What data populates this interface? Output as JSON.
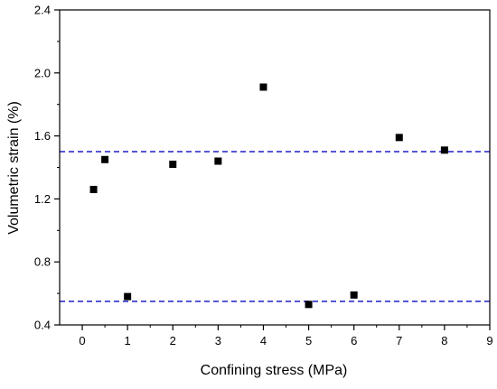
{
  "chart_data": {
    "type": "scatter",
    "title": "",
    "xlabel": "Confining stress (MPa)",
    "ylabel": "Volumetric strain (%)",
    "xlim": [
      -0.5,
      9
    ],
    "ylim": [
      0.4,
      2.4
    ],
    "x_ticks": [
      "0",
      "1",
      "2",
      "3",
      "4",
      "5",
      "6",
      "7",
      "8",
      "9"
    ],
    "y_ticks": [
      "0.4",
      "0.8",
      "1.2",
      "1.6",
      "2.0",
      "2.4"
    ],
    "x_tick_values": [
      0,
      1,
      2,
      3,
      4,
      5,
      6,
      7,
      8,
      9
    ],
    "y_tick_values": [
      0.4,
      0.8,
      1.2,
      1.6,
      2.0,
      2.4
    ],
    "grid": false,
    "marker": "square",
    "series": [
      {
        "x": [
          0.25,
          0.5,
          1,
          2,
          3,
          4,
          5,
          6,
          7,
          8
        ],
        "y": [
          1.26,
          1.45,
          0.58,
          1.42,
          1.44,
          1.91,
          0.53,
          0.59,
          1.59,
          1.51
        ]
      }
    ],
    "reference_lines": [
      {
        "y": 1.5,
        "style": "dashed",
        "color": "#1f1fc8"
      },
      {
        "y": 0.55,
        "style": "dashed",
        "color": "#1f1fc8"
      }
    ],
    "colors": {
      "marker": "#000000",
      "axis": "#000000",
      "reference": "#1f1fc8"
    }
  }
}
